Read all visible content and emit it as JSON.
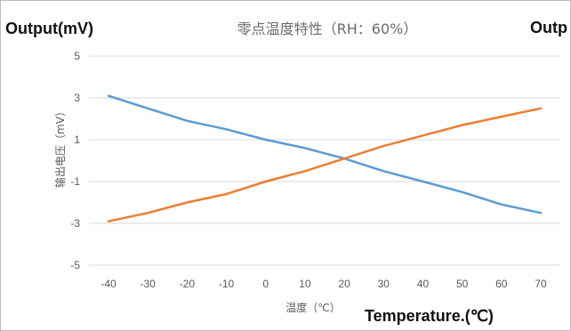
{
  "chart_data": {
    "type": "line",
    "title": "零点温度特性（RH：60%）",
    "ylabel": "输出电压（mV）",
    "xlabel": "温度（℃）",
    "overlay_labels": {
      "y_en": "Output(mV)",
      "y_en_right_clipped": "Outp",
      "x_en": "Temperature.(℃)"
    },
    "x": [
      -40,
      -30,
      -20,
      -10,
      0,
      10,
      20,
      30,
      40,
      50,
      60,
      70
    ],
    "xticks": [
      "-40",
      "-30",
      "-20",
      "-10",
      "0",
      "10",
      "20",
      "30",
      "40",
      "50",
      "60",
      "70"
    ],
    "yticks": [
      "5",
      "3",
      "1",
      "-1",
      "-3",
      "-5"
    ],
    "ylim": [
      -5,
      5
    ],
    "grid": true,
    "series": [
      {
        "color": "#5B9BD5",
        "values": [
          3.1,
          2.5,
          1.9,
          1.5,
          1.0,
          0.6,
          0.1,
          -0.5,
          -1.0,
          -1.5,
          -2.1,
          -2.5
        ]
      },
      {
        "color": "#ED7D31",
        "values": [
          -2.9,
          -2.5,
          -2.0,
          -1.6,
          -1.0,
          -0.5,
          0.1,
          0.7,
          1.2,
          1.7,
          2.1,
          2.5
        ]
      }
    ]
  }
}
